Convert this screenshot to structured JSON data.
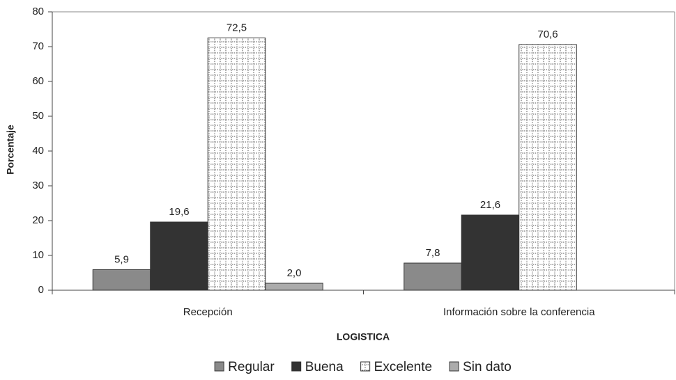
{
  "chart_data": {
    "type": "bar",
    "y_label": "Porcentaje",
    "x_label": "LOGISTICA",
    "categories": [
      "Recepción",
      "Información sobre la conferencia"
    ],
    "series": [
      {
        "name": "Regular",
        "color": "#8a8a8a",
        "values": [
          5.9,
          7.8
        ],
        "value_labels": [
          "5,9",
          "7,8"
        ]
      },
      {
        "name": "Buena",
        "color": "#333333",
        "values": [
          19.6,
          21.6
        ],
        "value_labels": [
          "19,6",
          "21,6"
        ]
      },
      {
        "name": "Excelente",
        "color": "#ffffff",
        "pattern": "dotted-grid",
        "values": [
          72.5,
          70.6
        ],
        "value_labels": [
          "72,5",
          "70,6"
        ]
      },
      {
        "name": "Sin dato",
        "color": "#ababab",
        "values": [
          2.0,
          null
        ],
        "value_labels": [
          "2,0",
          null
        ]
      }
    ],
    "ylim": [
      0,
      80
    ],
    "yticks": [
      0,
      10,
      20,
      30,
      40,
      50,
      60,
      70,
      80
    ],
    "legend": "bottom"
  }
}
